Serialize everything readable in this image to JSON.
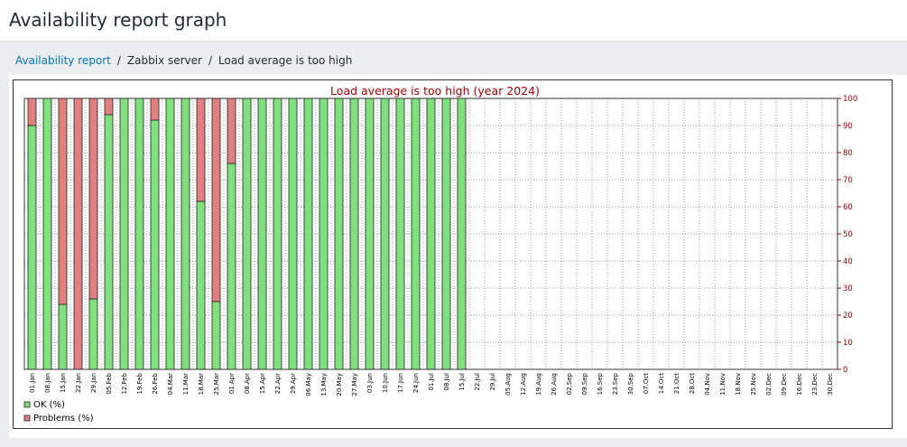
{
  "header": {
    "title": "Availability report graph"
  },
  "breadcrumbs": [
    "Availability report",
    "Zabbix server",
    "Load average is too high"
  ],
  "chart_data": {
    "type": "bar",
    "stacked": true,
    "title": "Load average is too high (year 2024)",
    "categories": [
      "01.Jan",
      "08.Jan",
      "15.Jan",
      "22.Jan",
      "29.Jan",
      "05.Feb",
      "12.Feb",
      "19.Feb",
      "26.Feb",
      "04.Mar",
      "11.Mar",
      "18.Mar",
      "25.Mar",
      "01.Apr",
      "08.Apr",
      "15.Apr",
      "22.Apr",
      "29.Apr",
      "06.May",
      "13.May",
      "20.May",
      "27.May",
      "03.Jun",
      "10.Jun",
      "17.Jun",
      "24.Jun",
      "01.Jul",
      "08.Jul",
      "15.Jul",
      "22.Jul",
      "29.Jul",
      "05.Aug",
      "12.Aug",
      "19.Aug",
      "26.Aug",
      "02.Sep",
      "09.Sep",
      "16.Sep",
      "23.Sep",
      "30.Sep",
      "07.Oct",
      "14.Oct",
      "21.Oct",
      "28.Oct",
      "04.Nov",
      "11.Nov",
      "18.Nov",
      "25.Nov",
      "02.Dec",
      "09.Dec",
      "16.Dec",
      "23.Dec",
      "30.Dec"
    ],
    "series": [
      {
        "name": "OK (%)",
        "color": "#80e080",
        "values": [
          90,
          100,
          24,
          0,
          26,
          94,
          100,
          100,
          92,
          100,
          100,
          62,
          25,
          76,
          100,
          100,
          100,
          100,
          100,
          100,
          100,
          100,
          100,
          100,
          100,
          100,
          100,
          100,
          100,
          null,
          null,
          null,
          null,
          null,
          null,
          null,
          null,
          null,
          null,
          null,
          null,
          null,
          null,
          null,
          null,
          null,
          null,
          null,
          null,
          null,
          null,
          null,
          null
        ]
      },
      {
        "name": "Problems (%)",
        "color": "#e08080",
        "values": [
          10,
          0,
          76,
          100,
          74,
          6,
          0,
          0,
          8,
          0,
          0,
          38,
          75,
          24,
          0,
          0,
          0,
          0,
          0,
          0,
          0,
          0,
          0,
          0,
          0,
          0,
          0,
          0,
          0,
          null,
          null,
          null,
          null,
          null,
          null,
          null,
          null,
          null,
          null,
          null,
          null,
          null,
          null,
          null,
          null,
          null,
          null,
          null,
          null,
          null,
          null,
          null,
          null
        ]
      }
    ],
    "ylim": [
      0,
      100
    ],
    "yticks": [
      0,
      10,
      20,
      30,
      40,
      50,
      60,
      70,
      80,
      90,
      100
    ],
    "grid": true,
    "y_axis_side": "right",
    "legend": "bottom-left"
  }
}
